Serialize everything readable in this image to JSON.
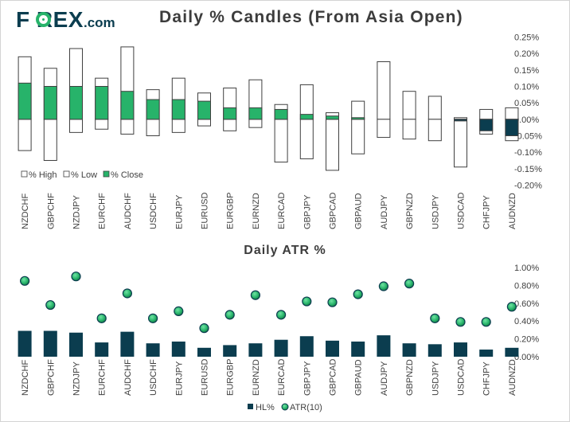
{
  "logo": {
    "text": "F REX",
    "suffix": ".com"
  },
  "colors": {
    "green": "#27b36a",
    "navy": "#0b3d4f",
    "border": "#404040",
    "text": "#404040"
  },
  "chart_data": [
    {
      "type": "candlestick-bar",
      "title": "Daily % Candles (From Asia Open)",
      "categories": [
        "NZDCHF",
        "GBPCHF",
        "NZDJPY",
        "EURCHF",
        "AUDCHF",
        "USDCHF",
        "EURJPY",
        "EURUSD",
        "EURGBP",
        "EURNZD",
        "EURCAD",
        "GBPJPY",
        "GBPCAD",
        "GBPAUD",
        "AUDJPY",
        "GBPNZD",
        "USDJPY",
        "USDCAD",
        "CHFJPY",
        "AUDNZD"
      ],
      "series": [
        {
          "name": "% High",
          "values": [
            0.19,
            0.155,
            0.215,
            0.125,
            0.22,
            0.09,
            0.125,
            0.08,
            0.095,
            0.12,
            0.045,
            0.105,
            0.02,
            0.055,
            0.175,
            0.085,
            0.07,
            0.005,
            0.03,
            0.035
          ]
        },
        {
          "name": "% Low",
          "values": [
            -0.095,
            -0.125,
            -0.04,
            -0.03,
            -0.045,
            -0.05,
            -0.04,
            -0.02,
            -0.035,
            -0.025,
            -0.13,
            -0.12,
            -0.155,
            -0.105,
            -0.055,
            -0.06,
            -0.065,
            -0.145,
            -0.045,
            -0.065
          ]
        },
        {
          "name": "% Close",
          "values": [
            0.11,
            0.1,
            0.1,
            0.1,
            0.085,
            0.06,
            0.06,
            0.055,
            0.035,
            0.035,
            0.03,
            0.015,
            0.01,
            0.005,
            0.0,
            0.0,
            0.0,
            -0.005,
            -0.035,
            -0.05
          ]
        }
      ],
      "yticks": [
        "0.25%",
        "0.20%",
        "0.15%",
        "0.10%",
        "0.05%",
        "0.00%",
        "-0.05%",
        "-0.10%",
        "-0.15%",
        "-0.20%"
      ],
      "ylim": [
        -0.2,
        0.25
      ],
      "legend": "bottom-left"
    },
    {
      "type": "bar+scatter",
      "title": "Daily ATR %",
      "categories": [
        "NZDCHF",
        "GBPCHF",
        "NZDJPY",
        "EURCHF",
        "AUDCHF",
        "USDCHF",
        "EURJPY",
        "EURUSD",
        "EURGBP",
        "EURNZD",
        "EURCAD",
        "GBPJPY",
        "GBPCAD",
        "GBPAUD",
        "AUDJPY",
        "GBPNZD",
        "USDJPY",
        "USDCAD",
        "CHFJPY",
        "AUDNZD"
      ],
      "series": [
        {
          "name": "HL%",
          "type": "bar",
          "values": [
            0.29,
            0.29,
            0.27,
            0.16,
            0.28,
            0.15,
            0.17,
            0.1,
            0.13,
            0.15,
            0.19,
            0.23,
            0.18,
            0.17,
            0.24,
            0.15,
            0.14,
            0.16,
            0.08,
            0.1
          ]
        },
        {
          "name": "ATR(10)",
          "type": "scatter",
          "values": [
            0.85,
            0.58,
            0.9,
            0.43,
            0.71,
            0.43,
            0.51,
            0.32,
            0.47,
            0.69,
            0.47,
            0.62,
            0.61,
            0.7,
            0.79,
            0.82,
            0.43,
            0.39,
            0.39,
            0.56
          ]
        }
      ],
      "yticks": [
        "1.00%",
        "0.80%",
        "0.60%",
        "0.40%",
        "0.20%",
        "0.00%"
      ],
      "ylim": [
        0,
        1.0
      ],
      "legend": "bottom-center"
    }
  ]
}
